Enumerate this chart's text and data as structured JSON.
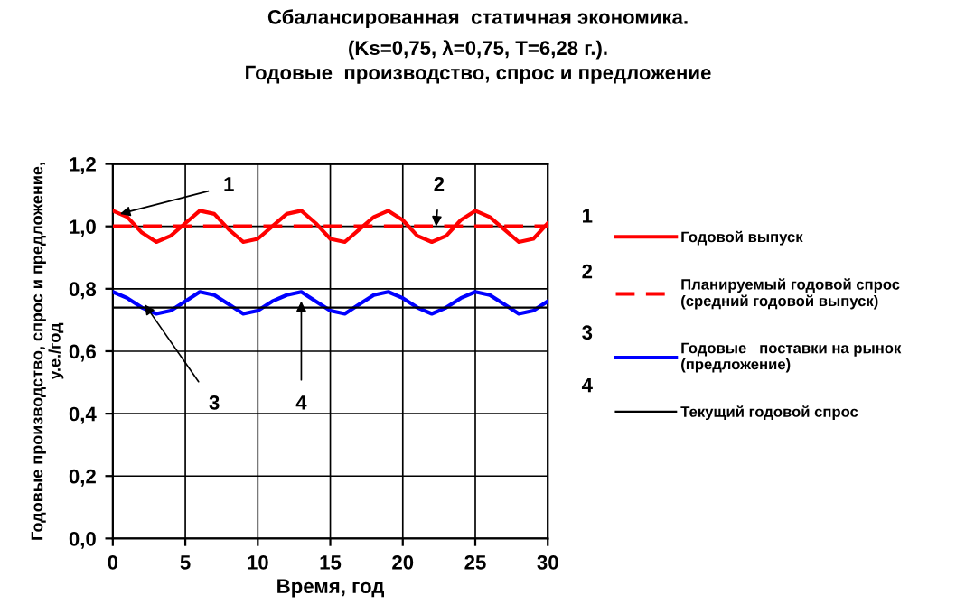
{
  "chart_data": {
    "type": "line",
    "title": "Сбалансированная  статичная экономика.",
    "subtitle": "(Ks=0,75, λ=0,75, T=6,28 г.).\nГодовые  производство, спрос и предложение",
    "xlabel": "Время, год",
    "ylabel": "Годовые производство, спрос и предложение,\nу.е./год",
    "x": [
      0,
      1,
      2,
      3,
      4,
      5,
      6,
      7,
      8,
      9,
      10,
      11,
      12,
      13,
      14,
      15,
      16,
      17,
      18,
      19,
      20,
      21,
      22,
      23,
      24,
      25,
      26,
      27,
      28,
      29,
      30
    ],
    "series": [
      {
        "name": "Годовой выпуск",
        "color": "#ff0000",
        "line_style": "solid",
        "values": [
          1.05,
          1.03,
          0.98,
          0.95,
          0.97,
          1.01,
          1.05,
          1.04,
          0.99,
          0.95,
          0.96,
          1.0,
          1.04,
          1.05,
          1.01,
          0.96,
          0.95,
          0.99,
          1.03,
          1.05,
          1.02,
          0.97,
          0.95,
          0.97,
          1.02,
          1.05,
          1.03,
          0.99,
          0.95,
          0.96,
          1.01
        ]
      },
      {
        "name": "Планируемый годовой спрос\n(средний годовой выпуск)",
        "color": "#ff0000",
        "line_style": "dashed",
        "values": [
          1.0,
          1.0,
          1.0,
          1.0,
          1.0,
          1.0,
          1.0,
          1.0,
          1.0,
          1.0,
          1.0,
          1.0,
          1.0,
          1.0,
          1.0,
          1.0,
          1.0,
          1.0,
          1.0,
          1.0,
          1.0,
          1.0,
          1.0,
          1.0,
          1.0,
          1.0,
          1.0,
          1.0,
          1.0,
          1.0,
          1.0
        ]
      },
      {
        "name": "Годовые   поставки на рынок\n(предложение)",
        "color": "#0000ff",
        "line_style": "solid",
        "values": [
          0.79,
          0.77,
          0.74,
          0.72,
          0.73,
          0.76,
          0.79,
          0.78,
          0.75,
          0.72,
          0.73,
          0.76,
          0.78,
          0.79,
          0.76,
          0.73,
          0.72,
          0.75,
          0.78,
          0.79,
          0.77,
          0.74,
          0.72,
          0.74,
          0.77,
          0.79,
          0.78,
          0.75,
          0.72,
          0.73,
          0.76
        ]
      },
      {
        "name": "Текущий годовой спрос",
        "color": "#000000",
        "line_style": "solid",
        "values": [
          0.74,
          0.74,
          0.74,
          0.74,
          0.74,
          0.74,
          0.74,
          0.74,
          0.74,
          0.74,
          0.74,
          0.74,
          0.74,
          0.74,
          0.74,
          0.74,
          0.74,
          0.74,
          0.74,
          0.74,
          0.74,
          0.74,
          0.74,
          0.74,
          0.74,
          0.74,
          0.74,
          0.74,
          0.74,
          0.74,
          0.74
        ]
      }
    ],
    "annotations": [
      {
        "text": "1",
        "x": 0.5,
        "y": 1.04
      },
      {
        "text": "2",
        "x": 22.3,
        "y": 1.0
      },
      {
        "text": "3",
        "x": 2.2,
        "y": 0.75
      },
      {
        "text": "4",
        "x": 13,
        "y": 0.76
      }
    ],
    "xlim": [
      0,
      30
    ],
    "xticks": [
      0,
      5,
      10,
      15,
      20,
      25,
      30
    ],
    "ylim": [
      0,
      1.2
    ],
    "yticks": [
      {
        "value": 0,
        "label": "0,0"
      },
      {
        "value": 0.2,
        "label": "0,2"
      },
      {
        "value": 0.4,
        "label": "0,4"
      },
      {
        "value": 0.6,
        "label": "0,6"
      },
      {
        "value": 0.8,
        "label": "0,8"
      },
      {
        "value": 1.0,
        "label": "1,0"
      },
      {
        "value": 1.2,
        "label": "1,2"
      }
    ],
    "grid": true,
    "legend": "right",
    "marker": "none"
  }
}
